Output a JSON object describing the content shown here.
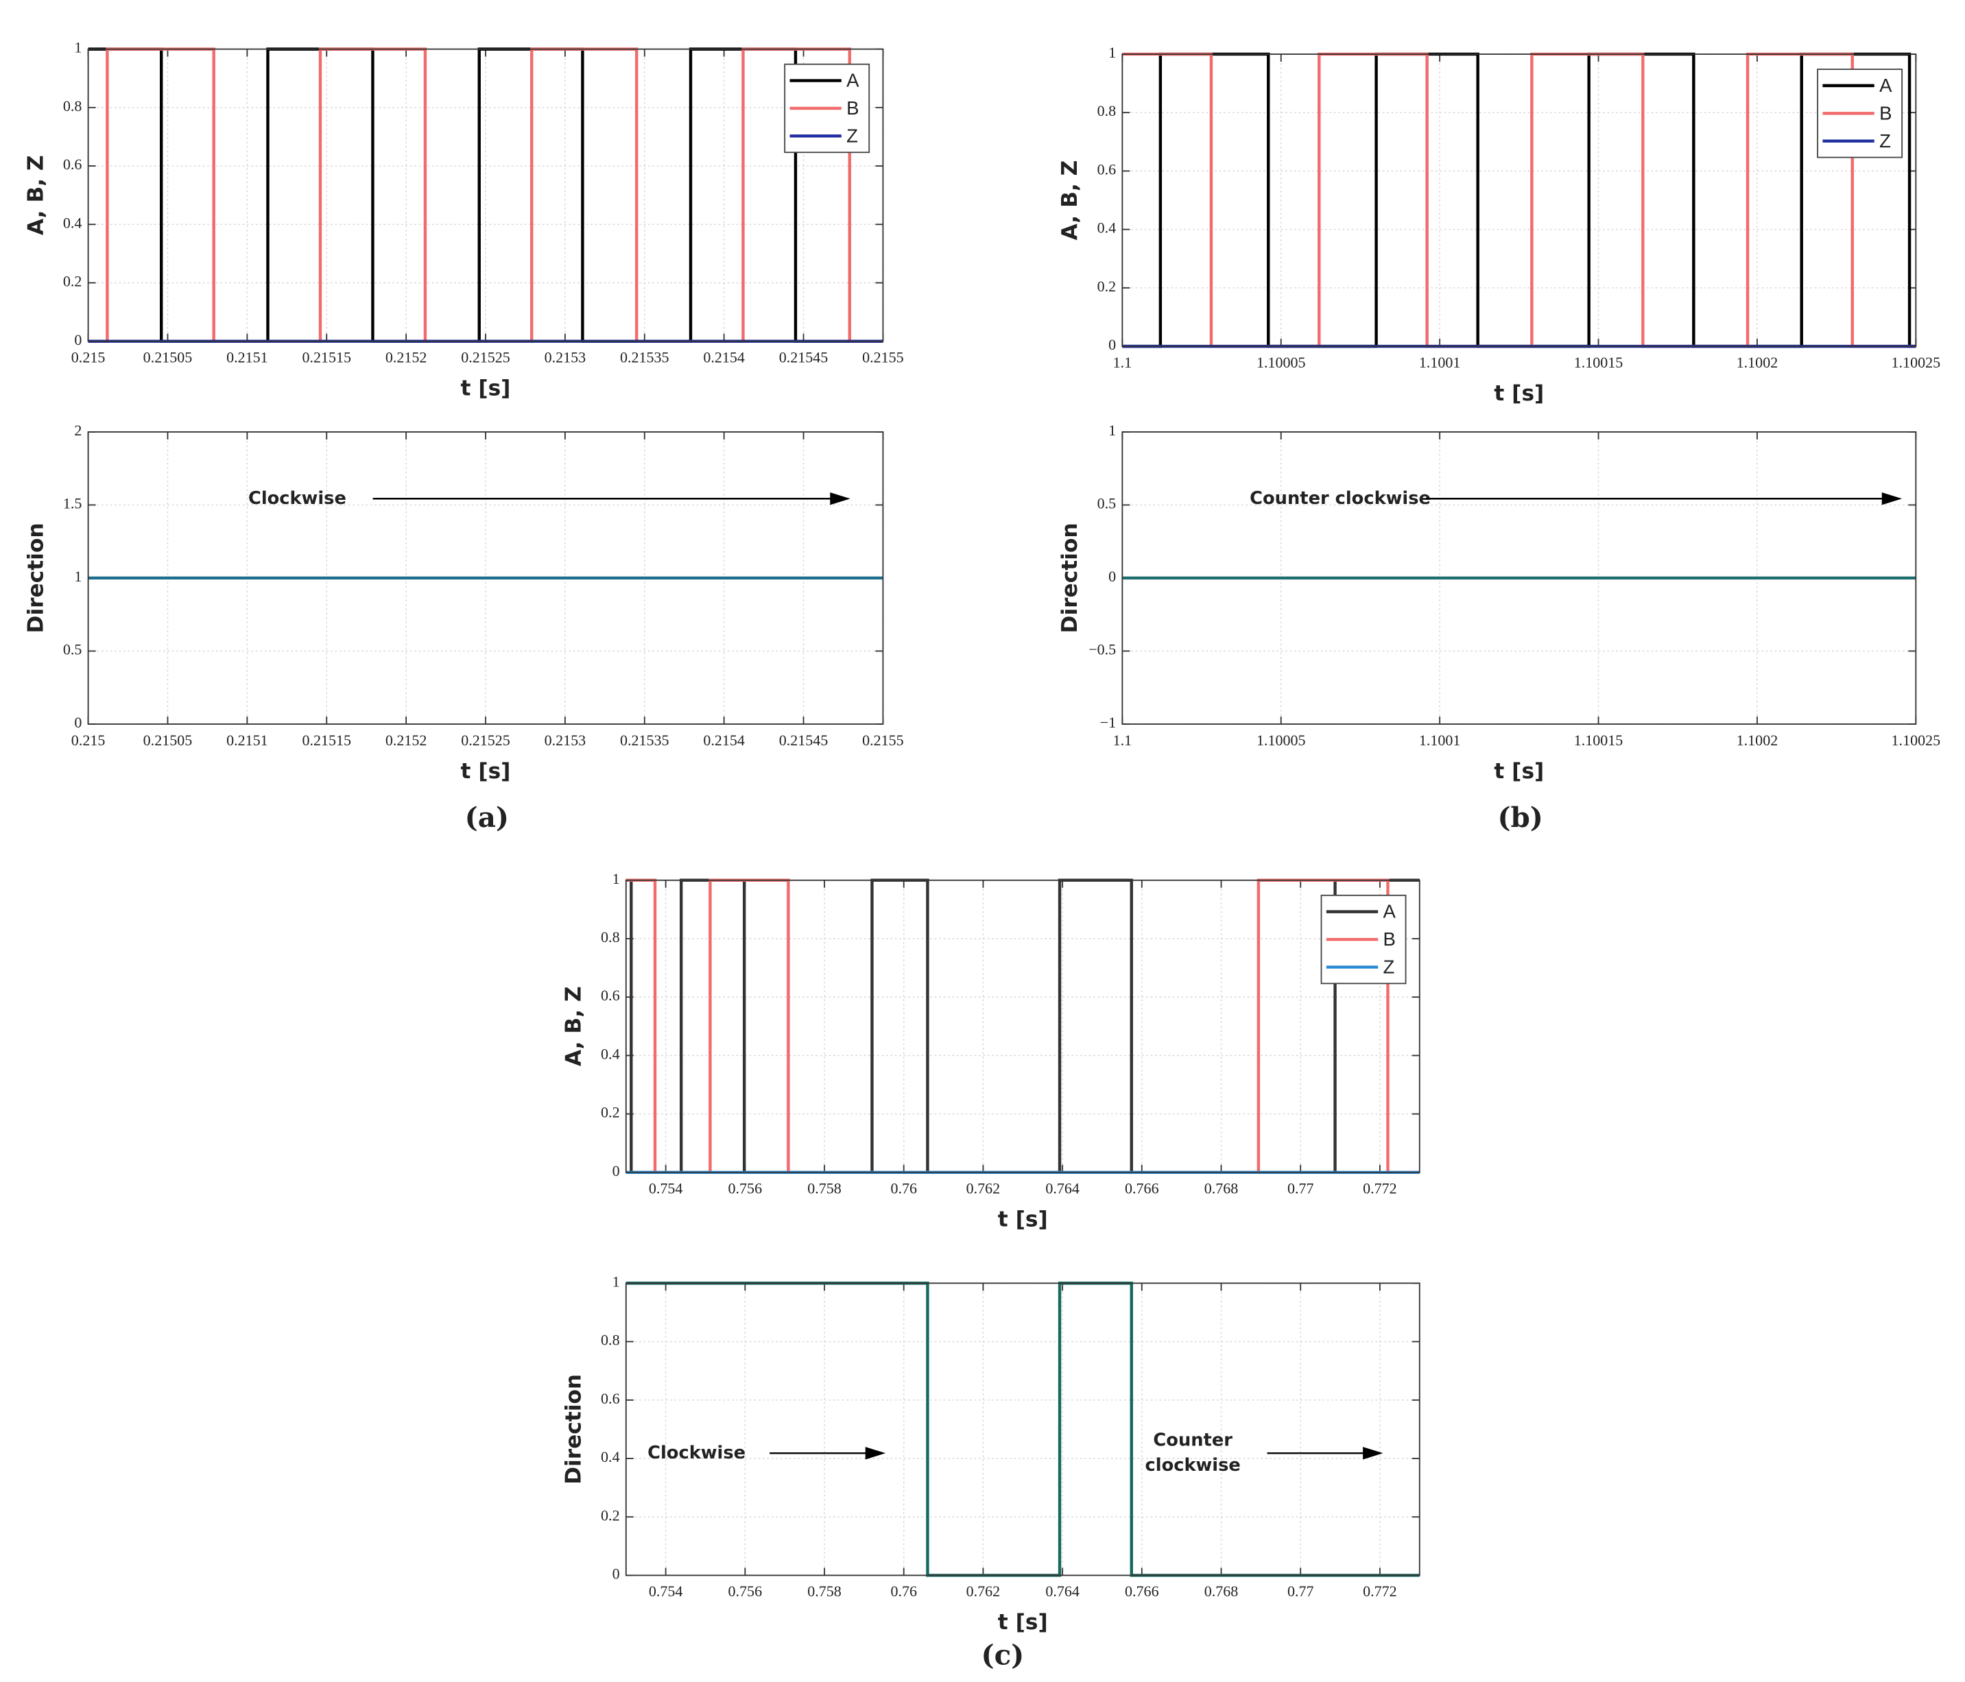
{
  "panel_note": null,
  "chart_data": [
    {
      "type": "line",
      "xlabel": "t [s]",
      "ylabel": "A, B, Z",
      "legend": "upper right",
      "grid": true,
      "xlim": [
        0.215,
        0.2155
      ],
      "xticks": [
        0.215,
        0.21505,
        0.2151,
        0.21515,
        0.2152,
        0.21525,
        0.2153,
        0.21535,
        0.2154,
        0.21545,
        0.2155
      ],
      "ylim": [
        0,
        1
      ],
      "yticks": [
        0,
        0.2,
        0.4,
        0.6,
        0.8,
        1
      ],
      "series": [
        {
          "name": "A",
          "color": "#000000",
          "x": [
            0.215,
            0.215046,
            0.215046,
            0.215113,
            0.215113,
            0.215179,
            0.215179,
            0.215246,
            0.215246,
            0.215311,
            0.215311,
            0.215379,
            0.215379,
            0.215445,
            0.215445,
            0.2155
          ],
          "values": [
            1,
            1,
            0,
            0,
            1,
            1,
            0,
            0,
            1,
            1,
            0,
            0,
            1,
            1,
            0,
            0
          ]
        },
        {
          "name": "B",
          "color": "#f26b6b",
          "x": [
            0.215,
            0.215012,
            0.215012,
            0.215079,
            0.215079,
            0.215146,
            0.215146,
            0.215212,
            0.215212,
            0.215279,
            0.215279,
            0.215345,
            0.215345,
            0.215412,
            0.215412,
            0.215479,
            0.215479,
            0.2155
          ],
          "values": [
            0,
            0,
            1,
            1,
            0,
            0,
            1,
            1,
            0,
            0,
            1,
            1,
            0,
            0,
            1,
            1,
            0,
            0
          ]
        },
        {
          "name": "Z",
          "color": "#1f2fa0",
          "x": [
            0.215,
            0.2155
          ],
          "values": [
            0,
            0
          ]
        }
      ]
    },
    {
      "type": "line",
      "xlabel": "t [s]",
      "ylabel": "Direction",
      "grid": true,
      "caption": "(a)",
      "xlim": [
        0.215,
        0.2155
      ],
      "xticks": [
        0.215,
        0.21505,
        0.2151,
        0.21515,
        0.2152,
        0.21525,
        0.2153,
        0.21535,
        0.2154,
        0.21545,
        0.2155
      ],
      "ylim": [
        0,
        2
      ],
      "yticks": [
        0,
        0.5,
        1,
        1.5,
        2
      ],
      "x": [
        0.215,
        0.2155
      ],
      "values": [
        1,
        1
      ],
      "color": "#1f6e8c",
      "annotations": [
        [
          "Clockwise"
        ]
      ]
    },
    {
      "type": "line",
      "xlabel": "t [s]",
      "ylabel": "A, B, Z",
      "legend": "upper right",
      "grid": true,
      "xlim": [
        1.1,
        1.10025
      ],
      "xticks": [
        1.1,
        1.10005,
        1.1001,
        1.10015,
        1.1002,
        1.10025
      ],
      "ylim": [
        0,
        1
      ],
      "yticks": [
        0,
        0.2,
        0.4,
        0.6,
        0.8,
        1
      ],
      "series": [
        {
          "name": "A",
          "color": "#000000",
          "x": [
            1.1,
            1.100012,
            1.100012,
            1.100046,
            1.100046,
            1.10008,
            1.10008,
            1.100112,
            1.100112,
            1.100147,
            1.100147,
            1.10018,
            1.10018,
            1.100214,
            1.100214,
            1.100248,
            1.100248,
            1.10025
          ],
          "values": [
            0,
            0,
            1,
            1,
            0,
            0,
            1,
            1,
            0,
            0,
            1,
            1,
            0,
            0,
            1,
            1,
            0,
            0
          ]
        },
        {
          "name": "B",
          "color": "#f26b6b",
          "x": [
            1.1,
            1.100028,
            1.100028,
            1.100062,
            1.100062,
            1.100096,
            1.100096,
            1.100129,
            1.100129,
            1.100164,
            1.100164,
            1.100197,
            1.100197,
            1.10023,
            1.10023,
            1.10025
          ],
          "values": [
            1,
            1,
            0,
            0,
            1,
            1,
            0,
            0,
            1,
            1,
            0,
            0,
            1,
            1,
            0,
            0
          ]
        },
        {
          "name": "Z",
          "color": "#1f2fa0",
          "x": [
            1.1,
            1.10025
          ],
          "values": [
            0,
            0
          ]
        }
      ]
    },
    {
      "type": "line",
      "xlabel": "t [s]",
      "ylabel": "Direction",
      "grid": true,
      "caption": "(b)",
      "xlim": [
        1.1,
        1.10025
      ],
      "xticks": [
        1.1,
        1.10005,
        1.1001,
        1.10015,
        1.1002,
        1.10025
      ],
      "ylim": [
        -1,
        1
      ],
      "yticks": [
        {
          "value": -1,
          "label": "−1"
        },
        {
          "value": -0.5,
          "label": "−0.5"
        },
        0,
        0.5,
        1
      ],
      "x": [
        1.1,
        1.10025
      ],
      "values": [
        0,
        0
      ],
      "color": "#1f6e6e",
      "annotations": [
        [
          "Counter clockwise"
        ]
      ]
    },
    {
      "type": "line",
      "xlabel": "t [s]",
      "ylabel": "A, B, Z",
      "legend": "upper right",
      "grid": true,
      "xlim": [
        0.753,
        0.773
      ],
      "xticks": [
        0.754,
        0.756,
        0.758,
        0.76,
        0.762,
        0.764,
        0.766,
        0.768,
        0.77,
        0.772
      ],
      "ylim": [
        0,
        1
      ],
      "yticks": [
        0,
        0.2,
        0.4,
        0.6,
        0.8,
        1
      ],
      "series": [
        {
          "name": "A",
          "color": "#333333",
          "x": [
            0.753,
            0.75313,
            0.75313,
            0.75439,
            0.75439,
            0.75598,
            0.75598,
            0.7592,
            0.7592,
            0.7606,
            0.7606,
            0.76393,
            0.76393,
            0.76574,
            0.76574,
            0.77087,
            0.77087,
            0.773
          ],
          "values": [
            1,
            1,
            0,
            0,
            1,
            1,
            0,
            0,
            1,
            1,
            0,
            0,
            1,
            1,
            0,
            0,
            1,
            1
          ]
        },
        {
          "name": "B",
          "color": "#f26b6b",
          "x": [
            0.753,
            0.75373,
            0.75373,
            0.75512,
            0.75512,
            0.75709,
            0.75709,
            0.76894,
            0.76894,
            0.7722,
            0.7722,
            0.773
          ],
          "values": [
            1,
            1,
            0,
            0,
            1,
            1,
            0,
            0,
            1,
            1,
            0,
            0
          ]
        },
        {
          "name": "Z",
          "color": "#2a8ad4",
          "x": [
            0.753,
            0.773
          ],
          "values": [
            0,
            0
          ]
        }
      ]
    },
    {
      "type": "line",
      "xlabel": "t [s]",
      "ylabel": "Direction",
      "grid": true,
      "caption": "(c)",
      "xlim": [
        0.753,
        0.773
      ],
      "xticks": [
        0.754,
        0.756,
        0.758,
        0.76,
        0.762,
        0.764,
        0.766,
        0.768,
        0.77,
        0.772
      ],
      "ylim": [
        0,
        1
      ],
      "yticks": [
        0,
        0.2,
        0.4,
        0.6,
        0.8,
        1
      ],
      "x": [
        0.753,
        0.7606,
        0.7606,
        0.76393,
        0.76393,
        0.76574,
        0.76574,
        0.773
      ],
      "values": [
        1,
        1,
        0,
        0,
        1,
        1,
        0,
        0
      ],
      "color": "#16695f",
      "annotations": [
        [
          "Clockwise"
        ],
        [
          "Counter",
          "clockwise"
        ]
      ]
    }
  ]
}
